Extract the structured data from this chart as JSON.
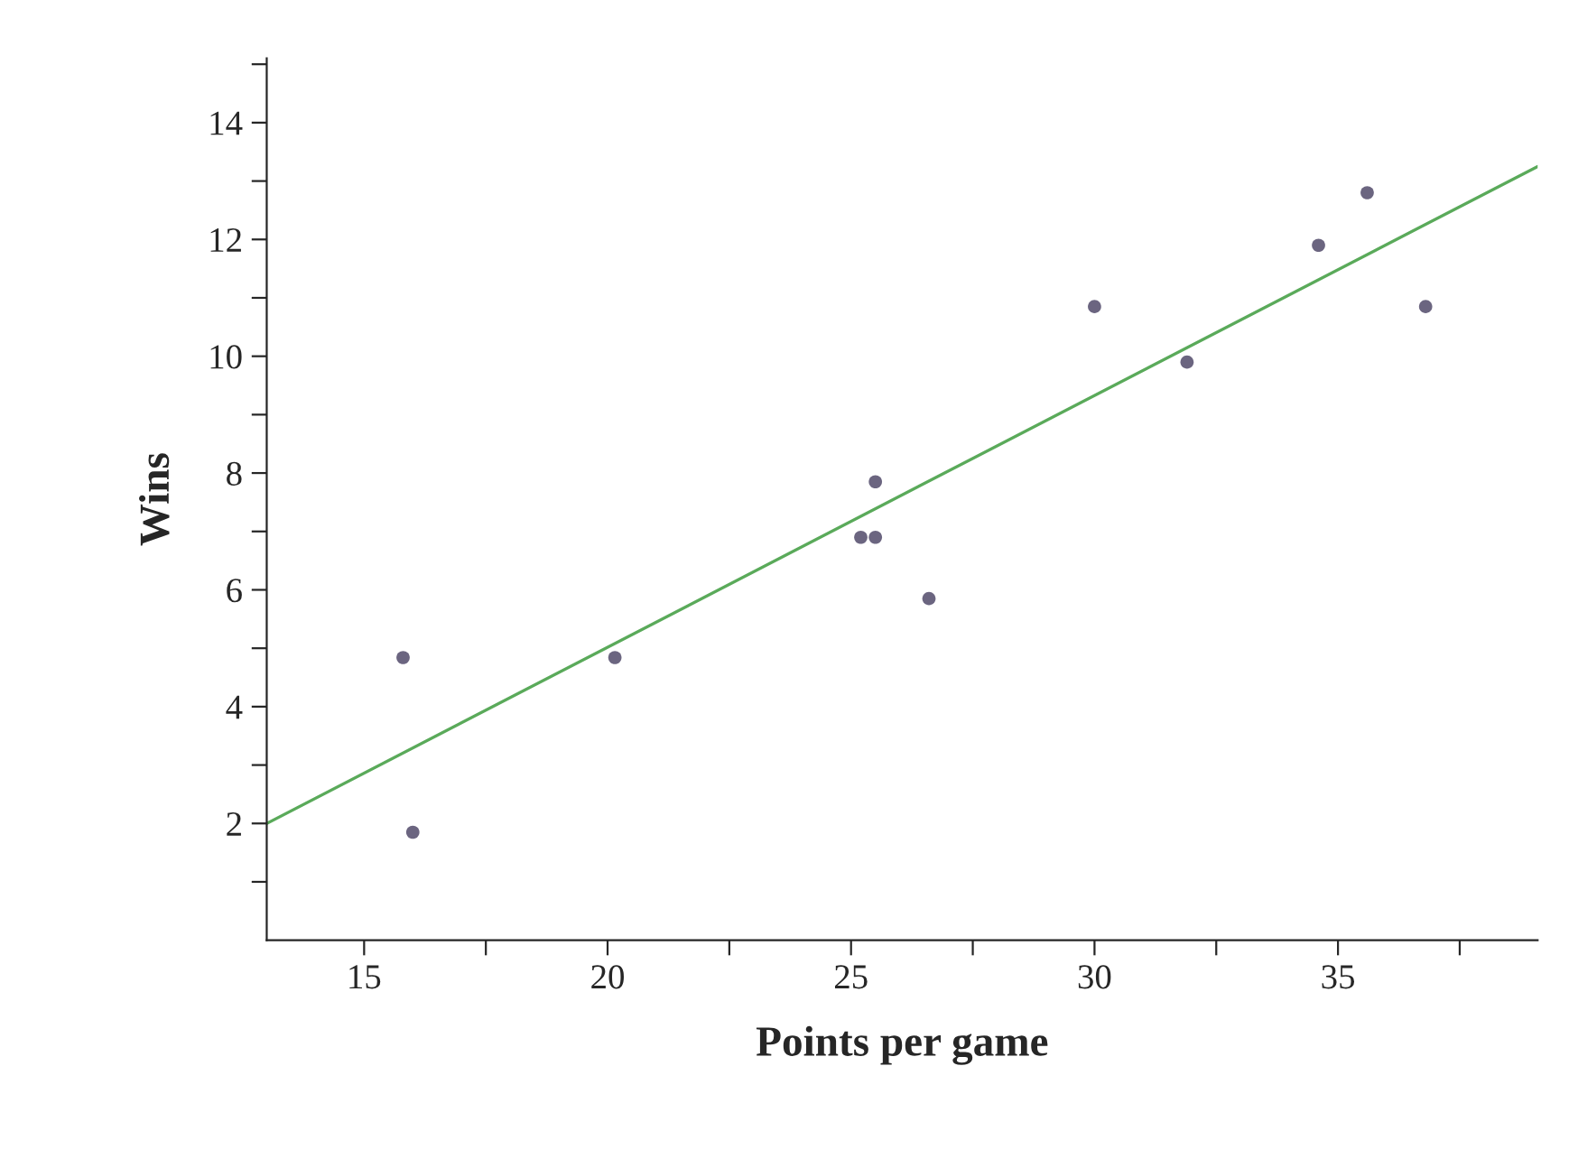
{
  "chart_data": {
    "type": "scatter",
    "xlabel": "Points per game",
    "ylabel": "Wins",
    "x": [
      15.8,
      16.0,
      20.15,
      25.2,
      25.5,
      25.5,
      26.6,
      30.0,
      31.9,
      34.6,
      35.6,
      36.8
    ],
    "series": [
      {
        "color": "#6b6580",
        "marker": "circle",
        "values": [
          4.84,
          1.85,
          4.84,
          6.9,
          6.9,
          7.85,
          5.85,
          10.85,
          9.9,
          11.9,
          12.8,
          10.85
        ]
      },
      {
        "type": "line",
        "color": "#5aaa5a",
        "x": [
          13.0,
          39.1
        ],
        "values": [
          2.0,
          13.25
        ]
      }
    ],
    "xlim": [
      13.0,
      39.1
    ],
    "ylim": [
      0.0,
      15.1
    ],
    "xticks": [
      15,
      {
        "value": 17.5,
        "label": null
      },
      20,
      {
        "value": 22.5,
        "label": null
      },
      25,
      {
        "value": 27.5,
        "label": null
      },
      30,
      {
        "value": 32.5,
        "label": null
      },
      35,
      {
        "value": 37.5,
        "label": null
      }
    ],
    "yticks": [
      {
        "value": 1,
        "label": null
      },
      2,
      {
        "value": 3,
        "label": null
      },
      4,
      {
        "value": 5,
        "label": null
      },
      6,
      {
        "value": 7,
        "label": null
      },
      8,
      {
        "value": 9,
        "label": null
      },
      10,
      {
        "value": 11,
        "label": null
      },
      12,
      {
        "value": 13,
        "label": null
      },
      14,
      {
        "value": 15,
        "label": null
      }
    ],
    "grid": false,
    "line_style": "solid"
  }
}
